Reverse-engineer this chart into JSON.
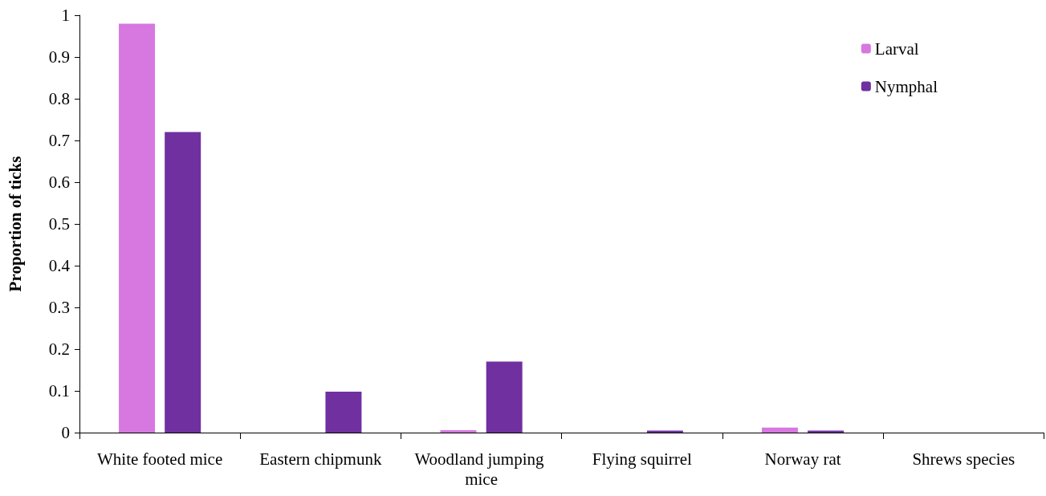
{
  "chart_data": {
    "type": "bar",
    "ylabel": "Proportion of ticks",
    "categories": [
      "White footed mice",
      "Eastern chipmunk",
      "Woodland jumping mice",
      "Flying squirrel",
      "Norway rat",
      "Shrews species"
    ],
    "series": [
      {
        "name": "Larval",
        "color": "#d678e0",
        "values": [
          0.98,
          0,
          0.006,
          0,
          0.012,
          0
        ]
      },
      {
        "name": "Nymphal",
        "color": "#7030a0",
        "values": [
          0.72,
          0.098,
          0.17,
          0.005,
          0.005,
          0
        ]
      }
    ],
    "ylim": [
      0,
      1
    ],
    "yticks": [
      0,
      0.1,
      0.2,
      0.3,
      0.4,
      0.5,
      0.6,
      0.7,
      0.8,
      0.9,
      1
    ],
    "grid": false,
    "legend": "top right"
  }
}
